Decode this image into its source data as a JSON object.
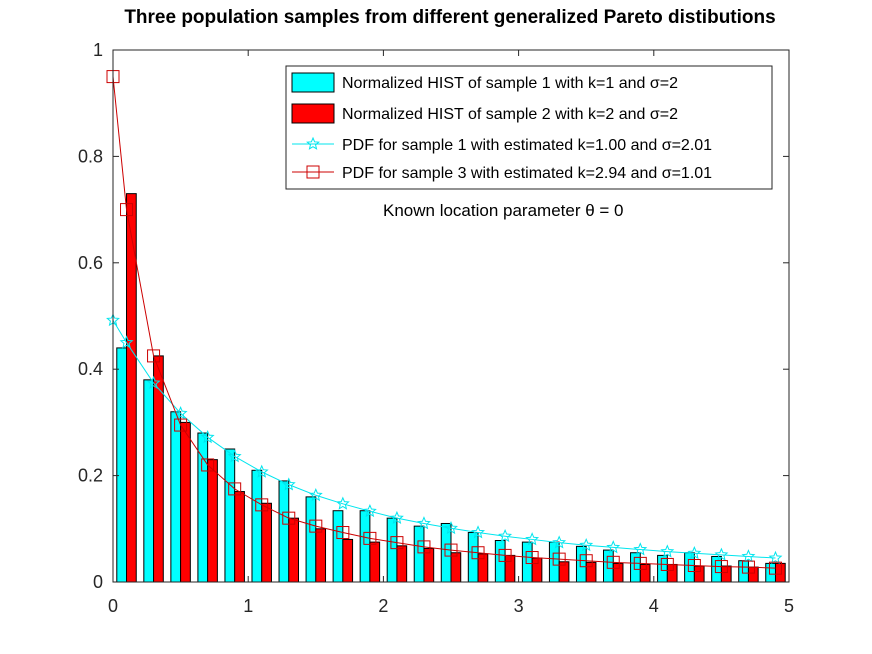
{
  "chart_data": {
    "type": "bar",
    "title": "Three population samples from different generalized Pareto distibutions",
    "xlabel": "",
    "ylabel": "",
    "xlim": [
      0,
      5
    ],
    "ylim": [
      0,
      1
    ],
    "xticks": [
      0,
      1,
      2,
      3,
      4,
      5
    ],
    "yticks": [
      0,
      0.2,
      0.4,
      0.6,
      0.8,
      1
    ],
    "xtick_labels": [
      "0",
      "1",
      "2",
      "3",
      "4",
      "5"
    ],
    "ytick_labels": [
      "0",
      "0.2",
      "0.4",
      "0.6",
      "0.8",
      "1"
    ],
    "legend_position": "top-right",
    "annotation": "Known location parameter θ = 0",
    "bin_centers": [
      0.1,
      0.3,
      0.5,
      0.7,
      0.9,
      1.1,
      1.3,
      1.5,
      1.7,
      1.9,
      2.1,
      2.3,
      2.5,
      2.7,
      2.9,
      3.1,
      3.3,
      3.5,
      3.7,
      3.9,
      4.1,
      4.3,
      4.5,
      4.7,
      4.9
    ],
    "series": [
      {
        "name": "Normalized HIST of sample 1 with k=1 and σ=2",
        "kind": "bar",
        "color": "#00ffff",
        "values": [
          0.44,
          0.38,
          0.32,
          0.28,
          0.25,
          0.21,
          0.19,
          0.16,
          0.134,
          0.134,
          0.12,
          0.105,
          0.11,
          0.093,
          0.078,
          0.075,
          0.075,
          0.067,
          0.06,
          0.055,
          0.05,
          0.055,
          0.048,
          0.04,
          0.035
        ]
      },
      {
        "name": "Normalized HIST of sample 2 with k=2 and σ=2",
        "kind": "bar",
        "color": "#ff0000",
        "values": [
          0.73,
          0.425,
          0.3,
          0.23,
          0.17,
          0.148,
          0.12,
          0.1,
          0.08,
          0.075,
          0.068,
          0.063,
          0.055,
          0.053,
          0.05,
          0.045,
          0.038,
          0.037,
          0.035,
          0.033,
          0.033,
          0.03,
          0.03,
          0.028,
          0.035
        ]
      },
      {
        "name": "PDF for sample 1 with estimated k=1.00 and σ=2.01",
        "kind": "line",
        "marker": "star",
        "color": "#00e5ee",
        "x": [
          0,
          0.1,
          0.3,
          0.5,
          0.7,
          0.9,
          1.1,
          1.3,
          1.5,
          1.7,
          1.9,
          2.1,
          2.3,
          2.5,
          2.7,
          2.9,
          3.1,
          3.3,
          3.5,
          3.7,
          3.9,
          4.1,
          4.3,
          4.5,
          4.7,
          4.9
        ],
        "values": [
          0.492,
          0.45,
          0.374,
          0.317,
          0.272,
          0.236,
          0.207,
          0.183,
          0.163,
          0.147,
          0.133,
          0.12,
          0.11,
          0.101,
          0.093,
          0.086,
          0.08,
          0.074,
          0.069,
          0.065,
          0.061,
          0.057,
          0.054,
          0.051,
          0.048,
          0.045
        ]
      },
      {
        "name": "PDF for sample 3 with estimated k=2.94 and σ=1.01",
        "kind": "line",
        "marker": "square",
        "color": "#cc0000",
        "x": [
          0,
          0.1,
          0.3,
          0.5,
          0.7,
          0.9,
          1.1,
          1.3,
          1.5,
          1.7,
          1.9,
          2.1,
          2.3,
          2.5,
          2.7,
          2.9,
          3.1,
          3.3,
          3.5,
          3.7,
          3.9,
          4.1,
          4.3,
          4.5,
          4.7,
          4.9
        ],
        "values": [
          0.95,
          0.7,
          0.425,
          0.295,
          0.22,
          0.175,
          0.145,
          0.12,
          0.105,
          0.093,
          0.082,
          0.074,
          0.066,
          0.06,
          0.055,
          0.05,
          0.046,
          0.043,
          0.04,
          0.037,
          0.035,
          0.033,
          0.031,
          0.029,
          0.028,
          0.026
        ]
      }
    ]
  }
}
